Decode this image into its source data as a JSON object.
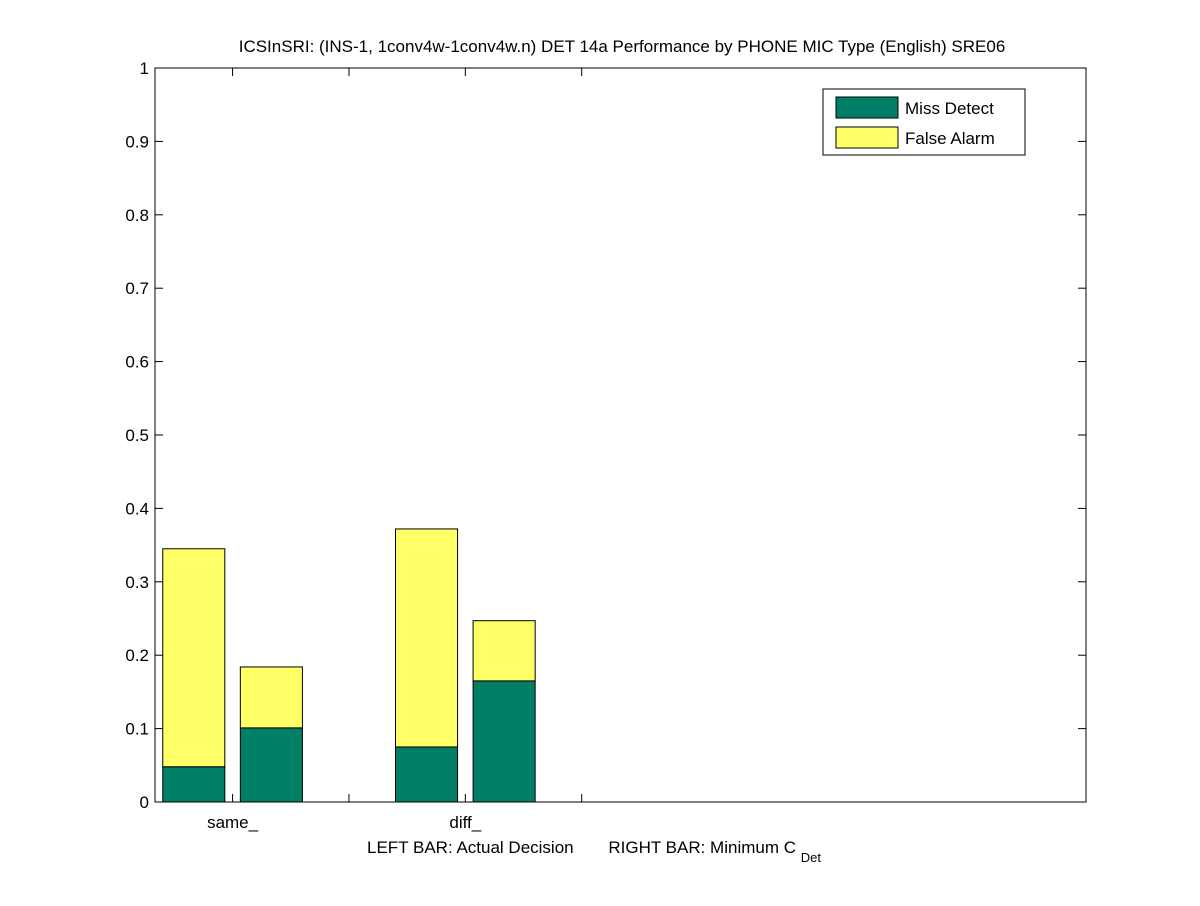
{
  "chart_data": {
    "type": "bar",
    "stacked": true,
    "title": "ICSInSRI: (INS-1, 1conv4w-1conv4w.n) DET 14a Performance by PHONE MIC Type (English) SRE06",
    "categories": [
      "same_",
      "diff_"
    ],
    "bar_pair_labels": [
      "Actual Decision",
      "Minimum C_Det"
    ],
    "xlabel": {
      "left_prefix": "LEFT BAR: Actual Decision",
      "right_prefix": "RIGHT BAR: Minimum C",
      "right_subscript": "Det"
    },
    "ylim": [
      0,
      1
    ],
    "yticks": [
      0,
      0.1,
      0.2,
      0.3,
      0.4,
      0.5,
      0.6,
      0.7,
      0.8,
      0.9,
      1
    ],
    "ytick_labels": [
      "0",
      "0.1",
      "0.2",
      "0.3",
      "0.4",
      "0.5",
      "0.6",
      "0.7",
      "0.8",
      "0.9",
      "1"
    ],
    "grid": false,
    "legend_position": "top-right",
    "series": [
      {
        "name": "Miss Detect",
        "color": "#007f66",
        "values": [
          [
            0.048,
            0.101
          ],
          [
            0.075,
            0.165
          ]
        ]
      },
      {
        "name": "False Alarm",
        "color": "#ffff66",
        "values": [
          [
            0.297,
            0.083
          ],
          [
            0.297,
            0.082
          ]
        ]
      }
    ]
  }
}
